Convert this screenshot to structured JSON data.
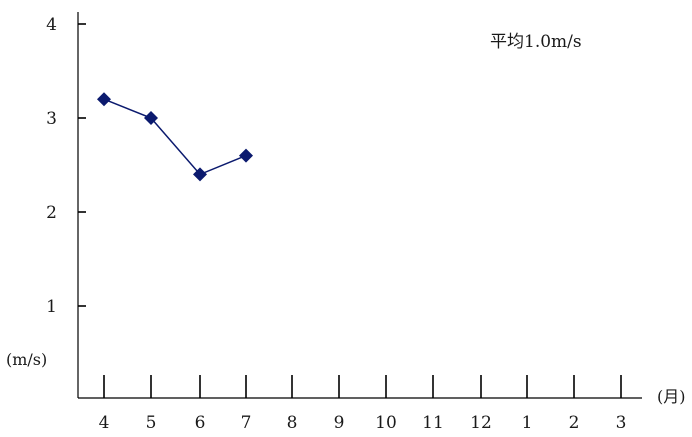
{
  "chart_data": {
    "type": "line",
    "annotation": "平均1.0m/s",
    "ylabel": "(m/s)",
    "xlabel": "(月)",
    "categories": [
      "4",
      "5",
      "6",
      "7",
      "8",
      "9",
      "10",
      "11",
      "12",
      "1",
      "2",
      "3"
    ],
    "yticks": [
      "1",
      "2",
      "3",
      "4"
    ],
    "ylim": [
      0,
      4
    ],
    "series": [
      {
        "values": [
          3.2,
          3.0,
          2.4,
          2.6,
          null,
          null,
          null,
          null,
          null,
          null,
          null,
          null
        ],
        "color": "#0b1a6e"
      }
    ],
    "grid": false,
    "legend": "none"
  }
}
